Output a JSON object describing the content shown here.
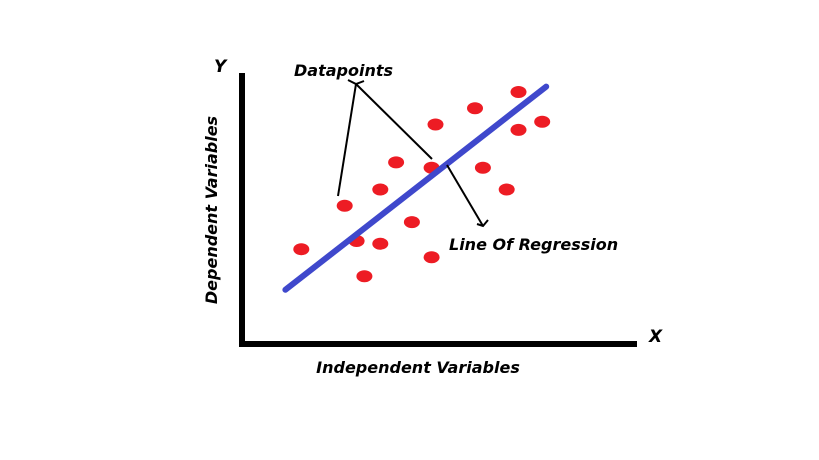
{
  "labels": {
    "y_axis_letter": "Y",
    "x_axis_letter": "X",
    "y_axis_title": "Dependent Variables",
    "x_axis_title": "Independent Variables",
    "datapoints_annotation": "Datapoints",
    "regression_annotation": "Line Of Regression"
  },
  "colors": {
    "axis": "#000000",
    "datapoint": "#ed1c24",
    "regression_line": "#3f48cc",
    "annotation_arrow": "#000000"
  },
  "chart_data": {
    "type": "scatter",
    "title": "",
    "xlabel": "Independent Variables",
    "ylabel": "Dependent Variables",
    "points": [
      {
        "x": 0.15,
        "y": 0.35
      },
      {
        "x": 0.26,
        "y": 0.51
      },
      {
        "x": 0.29,
        "y": 0.38
      },
      {
        "x": 0.31,
        "y": 0.25
      },
      {
        "x": 0.35,
        "y": 0.57
      },
      {
        "x": 0.35,
        "y": 0.37
      },
      {
        "x": 0.39,
        "y": 0.67
      },
      {
        "x": 0.43,
        "y": 0.45
      },
      {
        "x": 0.48,
        "y": 0.32
      },
      {
        "x": 0.48,
        "y": 0.65
      },
      {
        "x": 0.49,
        "y": 0.81
      },
      {
        "x": 0.59,
        "y": 0.87
      },
      {
        "x": 0.61,
        "y": 0.65
      },
      {
        "x": 0.67,
        "y": 0.57
      },
      {
        "x": 0.7,
        "y": 0.79
      },
      {
        "x": 0.7,
        "y": 0.93
      },
      {
        "x": 0.76,
        "y": 0.82
      }
    ],
    "regression_line": {
      "x": [
        0.11,
        0.77
      ],
      "y": [
        0.2,
        0.95
      ]
    }
  }
}
